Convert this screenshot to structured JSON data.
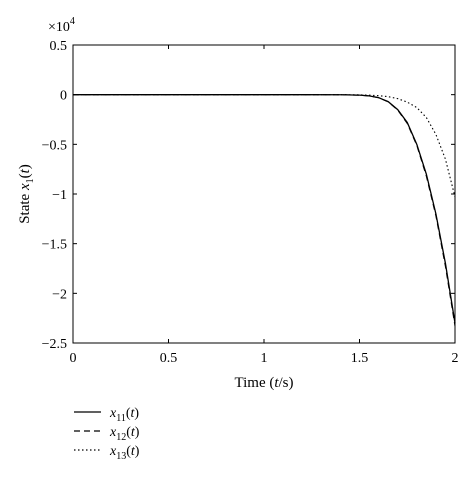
{
  "chart_data": {
    "type": "line",
    "xlabel_parts": [
      "Time (",
      "t",
      "/s)"
    ],
    "ylabel_parts": [
      "State ",
      "x",
      "1",
      "(",
      "t",
      ")"
    ],
    "y_multiplier": "×10",
    "y_multiplier_exp": "4",
    "xlim": [
      0,
      2
    ],
    "ylim": [
      -2.5,
      0.5
    ],
    "x_ticks": [
      0,
      0.5,
      1,
      1.5,
      2
    ],
    "x_tick_labels": [
      "0",
      "0.5",
      "1",
      "1.5",
      "2"
    ],
    "y_ticks": [
      0.5,
      0,
      -0.5,
      -1,
      -1.5,
      -2,
      -2.5
    ],
    "y_tick_labels": [
      "0.5",
      "0",
      "−0.5",
      "−1",
      "−1.5",
      "−2",
      "−2.5"
    ],
    "grid": false,
    "legend_position": "bottom-left, below plot",
    "series": [
      {
        "name": "x11(t)",
        "legend_parts": [
          "x",
          "11",
          "(",
          "t",
          ")"
        ],
        "style": "solid",
        "x": [
          0,
          1.0,
          1.2,
          1.4,
          1.5,
          1.55,
          1.6,
          1.65,
          1.7,
          1.75,
          1.8,
          1.85,
          1.9,
          1.95,
          2.0
        ],
        "y": [
          0,
          0,
          0,
          -0.001,
          -0.005,
          -0.012,
          -0.03,
          -0.07,
          -0.15,
          -0.28,
          -0.5,
          -0.8,
          -1.2,
          -1.7,
          -2.3
        ]
      },
      {
        "name": "x12(t)",
        "legend_parts": [
          "x",
          "12",
          "(",
          "t",
          ")"
        ],
        "style": "dashed",
        "x": [
          0,
          1.0,
          1.2,
          1.4,
          1.5,
          1.55,
          1.6,
          1.65,
          1.7,
          1.75,
          1.8,
          1.85,
          1.9,
          1.95,
          2.0
        ],
        "y": [
          0,
          0,
          0,
          -0.001,
          -0.005,
          -0.013,
          -0.031,
          -0.072,
          -0.155,
          -0.29,
          -0.51,
          -0.82,
          -1.22,
          -1.73,
          -2.33
        ]
      },
      {
        "name": "x13(t)",
        "legend_parts": [
          "x",
          "13",
          "(",
          "t",
          ")"
        ],
        "style": "dotted",
        "x": [
          0,
          1.0,
          1.2,
          1.4,
          1.5,
          1.55,
          1.6,
          1.65,
          1.7,
          1.75,
          1.8,
          1.85,
          1.9,
          1.95,
          2.0
        ],
        "y": [
          0,
          0,
          0,
          0,
          -0.002,
          -0.005,
          -0.01,
          -0.02,
          -0.04,
          -0.075,
          -0.13,
          -0.23,
          -0.4,
          -0.65,
          -1.03
        ]
      }
    ]
  }
}
